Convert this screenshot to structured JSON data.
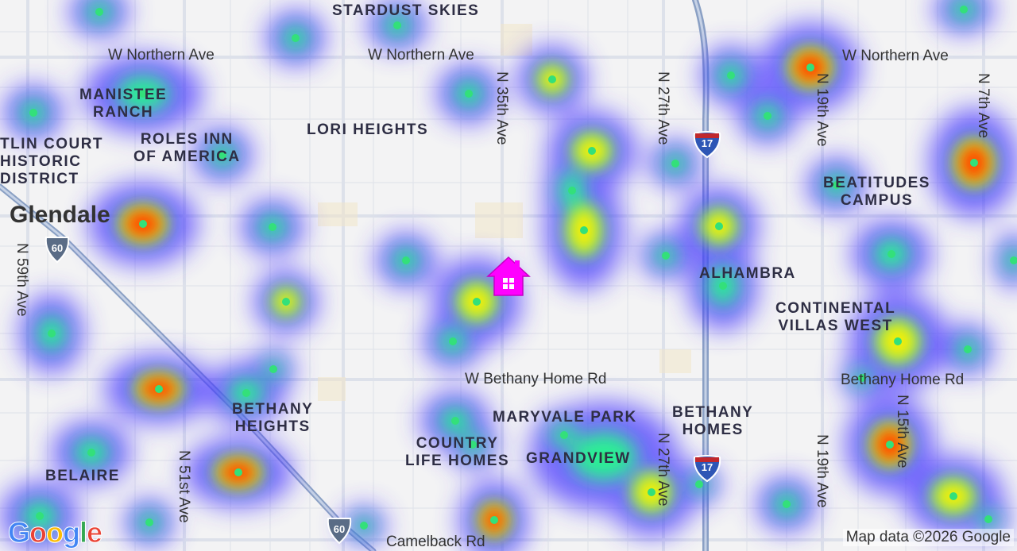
{
  "map": {
    "type": "heatmap",
    "roads": [
      {
        "id": "w-northern-ave-west",
        "label": "W Northern Ave"
      },
      {
        "id": "w-northern-ave-mid",
        "label": "W Northern Ave"
      },
      {
        "id": "w-northern-ave-east",
        "label": "W Northern Ave"
      },
      {
        "id": "n-35th-ave",
        "label": "N 35th Ave"
      },
      {
        "id": "n-27th-ave-north",
        "label": "N 27th Ave"
      },
      {
        "id": "n-19th-ave-north",
        "label": "N 19th Ave"
      },
      {
        "id": "n-7th-ave",
        "label": "N 7th Ave"
      },
      {
        "id": "n-59th-ave",
        "label": "N 59th Ave"
      },
      {
        "id": "w-bethany-home-rd-mid",
        "label": "W Bethany Home Rd"
      },
      {
        "id": "bethany-home-rd-east",
        "label": "Bethany Home Rd"
      },
      {
        "id": "n-51st-ave",
        "label": "N 51st Ave"
      },
      {
        "id": "n-27th-ave-south",
        "label": "N 27th Ave"
      },
      {
        "id": "n-19th-ave-south",
        "label": "N 19th Ave"
      },
      {
        "id": "n-15th-ave",
        "label": "N 15th Ave"
      },
      {
        "id": "camelback-rd",
        "label": "Camelback Rd"
      }
    ],
    "neighborhoods": [
      {
        "id": "stardust-skies",
        "label": "STARDUST SKIES"
      },
      {
        "id": "manistee-ranch",
        "label": "MANISTEE\nRANCH"
      },
      {
        "id": "lori-heights",
        "label": "LORI HEIGHTS"
      },
      {
        "id": "roles-inn",
        "label": "ROLES INN\nOF AMERICA"
      },
      {
        "id": "catlin-court",
        "label": "TLIN COURT\nHISTORIC\nDISTRICT"
      },
      {
        "id": "beatitudes-campus",
        "label": "BEATITUDES\nCAMPUS"
      },
      {
        "id": "alhambra",
        "label": "ALHAMBRA"
      },
      {
        "id": "continental-villas-west",
        "label": "CONTINENTAL\nVILLAS WEST"
      },
      {
        "id": "bethany-heights",
        "label": "BETHANY\nHEIGHTS"
      },
      {
        "id": "maryvale-park",
        "label": "MARYVALE PARK"
      },
      {
        "id": "bethany-homes",
        "label": "BETHANY\nHOMES"
      },
      {
        "id": "country-life-homes",
        "label": "COUNTRY\nLIFE HOMES"
      },
      {
        "id": "grandview",
        "label": "GRANDVIEW"
      },
      {
        "id": "belaire",
        "label": "BELAIRE"
      }
    ],
    "city": {
      "label": "Glendale"
    },
    "highway_shields": [
      {
        "id": "i17-north",
        "number": "17",
        "kind": "interstate"
      },
      {
        "id": "i17-south",
        "number": "17",
        "kind": "interstate"
      },
      {
        "id": "us60-north",
        "number": "60",
        "kind": "us-route"
      },
      {
        "id": "us60-south",
        "number": "60",
        "kind": "us-route"
      }
    ],
    "marker": {
      "icon": "home-icon",
      "color": "#ff00ff"
    },
    "logo": {
      "text": "Google"
    },
    "attribution": "Map data ©2026 Google",
    "colors": {
      "background": "#f3f3f4",
      "road": "#ffffff",
      "highway": "#8aa0c4",
      "heat_low": "#4b3bff",
      "heat_mid": "#22ff88",
      "heat_high": "#ff3300",
      "point": "#33e07a",
      "marker": "#ff00ff"
    }
  }
}
